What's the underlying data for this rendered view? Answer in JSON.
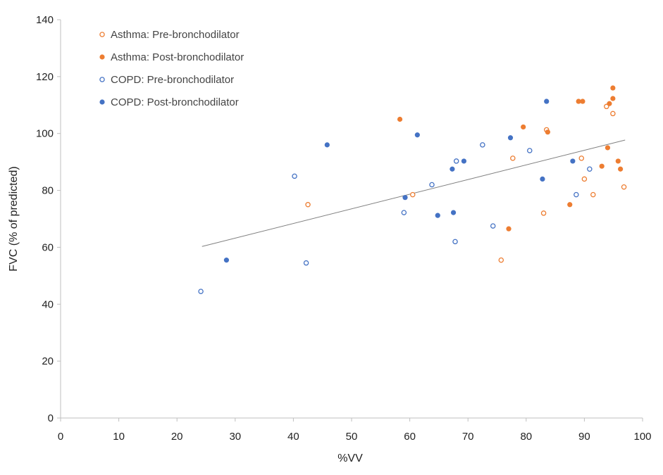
{
  "chart_data": {
    "type": "scatter",
    "xlabel": "%VV",
    "ylabel": "FVC (% of predicted)",
    "xlim": [
      0,
      100
    ],
    "ylim": [
      0,
      140
    ],
    "x_ticks": [
      0,
      10,
      20,
      30,
      40,
      50,
      60,
      70,
      80,
      90,
      100
    ],
    "y_ticks": [
      0,
      20,
      40,
      60,
      80,
      100,
      120,
      140
    ],
    "grid": false,
    "legend_position": "top-left",
    "trendline": {
      "x": [
        24.3,
        97.0
      ],
      "y": [
        60.3,
        97.7
      ],
      "color": "#808080"
    },
    "series": [
      {
        "name": "Asthma: Pre-bronchodilator",
        "color": "#ED7D31",
        "filled": false,
        "points": [
          {
            "x": 42.5,
            "y": 75
          },
          {
            "x": 60.5,
            "y": 78.5
          },
          {
            "x": 75.7,
            "y": 55.5
          },
          {
            "x": 77.7,
            "y": 91.3
          },
          {
            "x": 83.0,
            "y": 72
          },
          {
            "x": 83.5,
            "y": 101.3
          },
          {
            "x": 89.5,
            "y": 91.3
          },
          {
            "x": 90.0,
            "y": 84
          },
          {
            "x": 91.5,
            "y": 78.5
          },
          {
            "x": 93.8,
            "y": 109.5
          },
          {
            "x": 94.9,
            "y": 107
          },
          {
            "x": 96.8,
            "y": 81.2
          }
        ]
      },
      {
        "name": "Asthma: Post-bronchodilator",
        "color": "#ED7D31",
        "filled": true,
        "points": [
          {
            "x": 58.3,
            "y": 105
          },
          {
            "x": 77.0,
            "y": 66.5
          },
          {
            "x": 79.5,
            "y": 102.3
          },
          {
            "x": 83.7,
            "y": 100.5
          },
          {
            "x": 87.5,
            "y": 75
          },
          {
            "x": 89.0,
            "y": 111.3
          },
          {
            "x": 89.7,
            "y": 111.3
          },
          {
            "x": 93.0,
            "y": 88.5
          },
          {
            "x": 94.0,
            "y": 95
          },
          {
            "x": 94.3,
            "y": 110.5
          },
          {
            "x": 94.9,
            "y": 112.3
          },
          {
            "x": 94.9,
            "y": 116
          },
          {
            "x": 95.8,
            "y": 90.3
          },
          {
            "x": 96.2,
            "y": 87.5
          }
        ]
      },
      {
        "name": "COPD: Pre-bronchodilator",
        "color": "#4472C4",
        "filled": false,
        "points": [
          {
            "x": 24.1,
            "y": 44.5
          },
          {
            "x": 40.2,
            "y": 85
          },
          {
            "x": 42.2,
            "y": 54.5
          },
          {
            "x": 59.0,
            "y": 72.2
          },
          {
            "x": 63.8,
            "y": 82
          },
          {
            "x": 67.8,
            "y": 62
          },
          {
            "x": 68.0,
            "y": 90.3
          },
          {
            "x": 72.5,
            "y": 96
          },
          {
            "x": 74.3,
            "y": 67.5
          },
          {
            "x": 80.6,
            "y": 94
          },
          {
            "x": 88.6,
            "y": 78.5
          },
          {
            "x": 90.9,
            "y": 87.5
          }
        ]
      },
      {
        "name": "COPD: Post-bronchodilator",
        "color": "#4472C4",
        "filled": true,
        "points": [
          {
            "x": 28.5,
            "y": 55.5
          },
          {
            "x": 45.8,
            "y": 96
          },
          {
            "x": 59.2,
            "y": 77.5
          },
          {
            "x": 61.3,
            "y": 99.5
          },
          {
            "x": 64.8,
            "y": 71.2
          },
          {
            "x": 67.3,
            "y": 87.5
          },
          {
            "x": 67.5,
            "y": 72.2
          },
          {
            "x": 69.3,
            "y": 90.3
          },
          {
            "x": 77.3,
            "y": 98.5
          },
          {
            "x": 82.8,
            "y": 84
          },
          {
            "x": 83.5,
            "y": 111.3
          },
          {
            "x": 88.0,
            "y": 90.3
          }
        ]
      }
    ]
  }
}
